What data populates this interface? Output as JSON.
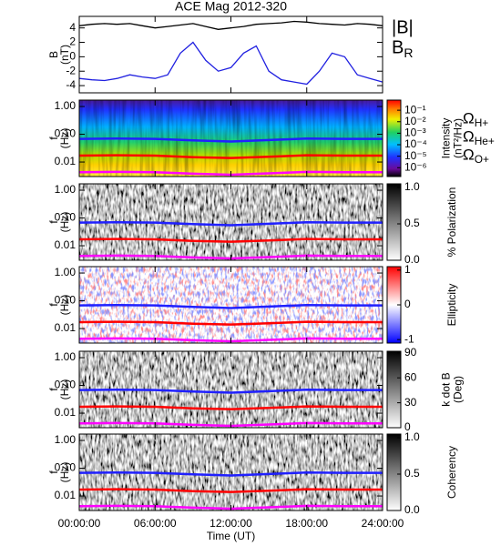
{
  "chart_data": [
    {
      "type": "line",
      "title": "ACE Mag 2012-320",
      "x": [
        0,
        1,
        2,
        3,
        4,
        5,
        6,
        7,
        8,
        9,
        10,
        11,
        12,
        13,
        14,
        15,
        16,
        17,
        18,
        19,
        20,
        21,
        22,
        23,
        24
      ],
      "xlim": [
        0,
        24
      ],
      "xticks": [
        0,
        6,
        12,
        18,
        24
      ],
      "ylim": [
        -5,
        5.6
      ],
      "yticks": [
        -4,
        -2,
        0,
        2,
        4
      ],
      "ylabel": [
        "B",
        "(nT)"
      ],
      "series": [
        {
          "name": "|B|",
          "color": "#000000",
          "values": [
            4.3,
            4.5,
            4.6,
            4.5,
            4.6,
            4.3,
            4.0,
            4.2,
            4.4,
            4.6,
            4.2,
            3.8,
            4.0,
            4.2,
            4.5,
            4.6,
            4.7,
            4.9,
            4.8,
            4.6,
            4.5,
            4.4,
            4.6,
            4.5,
            4.3
          ]
        },
        {
          "name": "BR",
          "color": "#2020e0",
          "values": [
            -3.0,
            -3.2,
            -3.3,
            -3.0,
            -2.5,
            -2.8,
            -3.0,
            -2.5,
            0.5,
            2.0,
            -0.5,
            -2.0,
            -1.5,
            0.5,
            1.5,
            -2.0,
            -3.2,
            -3.5,
            -3.8,
            -2.0,
            0.5,
            0.0,
            -2.5,
            -3.0,
            -3.5
          ]
        }
      ]
    },
    {
      "type": "spectrogram",
      "x": [
        0,
        3,
        6,
        9,
        12,
        15,
        18,
        21,
        24
      ],
      "xlim": [
        0,
        24
      ],
      "xticks": [
        0,
        6,
        12,
        18,
        24
      ],
      "ylim": [
        0.003,
        1.7
      ],
      "ylog": true,
      "yticks": [
        {
          "value": 1,
          "label": "1.00"
        },
        {
          "value": 0.1,
          "label": "0.10"
        },
        {
          "value": 0.01,
          "label": "0.01"
        }
      ],
      "ylabel": [
        "f",
        "(Hz)"
      ],
      "colormap": "rainbow",
      "colorbar": {
        "label": [
          "Intensity",
          "(nT²/Hz)"
        ],
        "lim": [
          1.7e-07,
          0.76
        ],
        "log": true,
        "ticks": [
          {
            "value": 0.1,
            "label": "10⁻¹"
          },
          {
            "value": 0.01,
            "label": "10⁻²"
          },
          {
            "value": 0.001,
            "label": "10⁻³"
          },
          {
            "value": 0.0001,
            "label": "10⁻⁴"
          },
          {
            "value": 1e-05,
            "label": "10⁻⁵"
          },
          {
            "value": 1e-06,
            "label": "10⁻⁶"
          }
        ]
      },
      "series": [
        {
          "name": "ΩH+",
          "color": "#2020ff",
          "values": [
            0.068,
            0.07,
            0.068,
            0.06,
            0.055,
            0.062,
            0.07,
            0.068,
            0.068
          ]
        },
        {
          "name": "ΩHe+",
          "color": "#ff0000",
          "values": [
            0.017,
            0.0175,
            0.017,
            0.015,
            0.014,
            0.0155,
            0.0175,
            0.017,
            0.017
          ]
        },
        {
          "name": "ΩO+",
          "color": "#ff00ff",
          "values": [
            0.0043,
            0.0044,
            0.0043,
            0.0038,
            0.0035,
            0.0039,
            0.0044,
            0.0043,
            0.0043
          ]
        }
      ]
    },
    {
      "type": "spectrogram",
      "x": [
        0,
        3,
        6,
        9,
        12,
        15,
        18,
        21,
        24
      ],
      "xlim": [
        0,
        24
      ],
      "xticks": [
        0,
        6,
        12,
        18,
        24
      ],
      "ylim": [
        0.003,
        1.7
      ],
      "ylog": true,
      "yticks": [
        {
          "value": 1,
          "label": "1.00"
        },
        {
          "value": 0.1,
          "label": "0.10"
        },
        {
          "value": 0.01,
          "label": "0.01"
        }
      ],
      "ylabel": [
        "f",
        "(Hz)"
      ],
      "colormap": "gray",
      "colorbar": {
        "label": [
          "% Polarization"
        ],
        "lim": [
          0,
          1.05
        ],
        "log": false,
        "ticks": [
          {
            "value": 0,
            "label": "0.0"
          },
          {
            "value": 0.5,
            "label": "0.5"
          },
          {
            "value": 1,
            "label": "1.0"
          }
        ]
      },
      "series": [
        {
          "color": "#2020ff",
          "values": [
            0.068,
            0.07,
            0.068,
            0.06,
            0.055,
            0.062,
            0.07,
            0.068,
            0.068
          ]
        },
        {
          "color": "#ff0000",
          "values": [
            0.017,
            0.0175,
            0.017,
            0.015,
            0.014,
            0.0155,
            0.0175,
            0.017,
            0.017
          ]
        },
        {
          "color": "#ff00ff",
          "values": [
            0.0043,
            0.0044,
            0.0043,
            0.0038,
            0.0035,
            0.0039,
            0.0044,
            0.0043,
            0.0043
          ]
        }
      ]
    },
    {
      "type": "spectrogram",
      "x": [
        0,
        3,
        6,
        9,
        12,
        15,
        18,
        21,
        24
      ],
      "xlim": [
        0,
        24
      ],
      "xticks": [
        0,
        6,
        12,
        18,
        24
      ],
      "ylim": [
        0.003,
        1.7
      ],
      "ylog": true,
      "yticks": [
        {
          "value": 1,
          "label": "1.00"
        },
        {
          "value": 0.1,
          "label": "0.10"
        },
        {
          "value": 0.01,
          "label": "0.01"
        }
      ],
      "ylabel": [
        "f",
        "(Hz)"
      ],
      "colormap": "bwr",
      "colorbar": {
        "label": [
          "Ellipticity"
        ],
        "lim": [
          -1.1,
          1.1
        ],
        "log": false,
        "ticks": [
          -1,
          0,
          1
        ]
      },
      "series": [
        {
          "color": "#2020ff",
          "values": [
            0.068,
            0.07,
            0.068,
            0.06,
            0.055,
            0.062,
            0.07,
            0.068,
            0.068
          ]
        },
        {
          "color": "#ff0000",
          "values": [
            0.017,
            0.0175,
            0.017,
            0.015,
            0.014,
            0.0155,
            0.0175,
            0.017,
            0.017
          ]
        },
        {
          "color": "#ff00ff",
          "values": [
            0.0043,
            0.0044,
            0.0043,
            0.0038,
            0.0035,
            0.0039,
            0.0044,
            0.0043,
            0.0043
          ]
        }
      ]
    },
    {
      "type": "spectrogram",
      "x": [
        0,
        3,
        6,
        9,
        12,
        15,
        18,
        21,
        24
      ],
      "xlim": [
        0,
        24
      ],
      "xticks": [
        0,
        6,
        12,
        18,
        24
      ],
      "ylim": [
        0.003,
        1.7
      ],
      "ylog": true,
      "yticks": [
        {
          "value": 1,
          "label": "1.00"
        },
        {
          "value": 0.1,
          "label": "0.10"
        },
        {
          "value": 0.01,
          "label": "0.01"
        }
      ],
      "ylabel": [
        "f",
        "(Hz)"
      ],
      "colormap": "gray",
      "colorbar": {
        "label": [
          "k dot B",
          "(Deg)"
        ],
        "lim": [
          0,
          92
        ],
        "log": false,
        "ticks": [
          0,
          30,
          60,
          90
        ]
      },
      "series": [
        {
          "color": "#2020ff",
          "values": [
            0.068,
            0.07,
            0.068,
            0.06,
            0.055,
            0.062,
            0.07,
            0.068,
            0.068
          ]
        },
        {
          "color": "#ff0000",
          "values": [
            0.017,
            0.0175,
            0.017,
            0.015,
            0.014,
            0.0155,
            0.0175,
            0.017,
            0.017
          ]
        },
        {
          "color": "#ff00ff",
          "values": [
            0.0043,
            0.0044,
            0.0043,
            0.0038,
            0.0035,
            0.0039,
            0.0044,
            0.0043,
            0.0043
          ]
        }
      ]
    },
    {
      "type": "spectrogram",
      "x": [
        0,
        3,
        6,
        9,
        12,
        15,
        18,
        21,
        24
      ],
      "xlim": [
        0,
        24
      ],
      "xticks": [
        {
          "value": 0,
          "label": "00:00:00"
        },
        {
          "value": 6,
          "label": "06:00:00"
        },
        {
          "value": 12,
          "label": "12:00:00"
        },
        {
          "value": 18,
          "label": "18:00:00"
        },
        {
          "value": 24,
          "label": "24:00:00"
        }
      ],
      "xlabel": "Time (UT)",
      "ylim": [
        0.003,
        1.7
      ],
      "ylog": true,
      "yticks": [
        {
          "value": 1,
          "label": "1.00"
        },
        {
          "value": 0.1,
          "label": "0.10"
        },
        {
          "value": 0.01,
          "label": "0.01"
        }
      ],
      "ylabel": [
        "f",
        "(Hz)"
      ],
      "colormap": "gray",
      "colorbar": {
        "label": [
          "Coherency"
        ],
        "lim": [
          0,
          1.05
        ],
        "log": false,
        "ticks": [
          {
            "value": 0,
            "label": "0.0"
          },
          {
            "value": 0.5,
            "label": "0.5"
          },
          {
            "value": 1,
            "label": "1.0"
          }
        ]
      },
      "series": [
        {
          "color": "#2020ff",
          "values": [
            0.068,
            0.07,
            0.068,
            0.06,
            0.055,
            0.062,
            0.07,
            0.068,
            0.068
          ]
        },
        {
          "color": "#ff0000",
          "values": [
            0.017,
            0.0175,
            0.017,
            0.015,
            0.014,
            0.0155,
            0.0175,
            0.017,
            0.017
          ]
        },
        {
          "color": "#ff00ff",
          "values": [
            0.0043,
            0.0044,
            0.0043,
            0.0038,
            0.0035,
            0.0039,
            0.0044,
            0.0043,
            0.0043
          ]
        }
      ]
    }
  ]
}
